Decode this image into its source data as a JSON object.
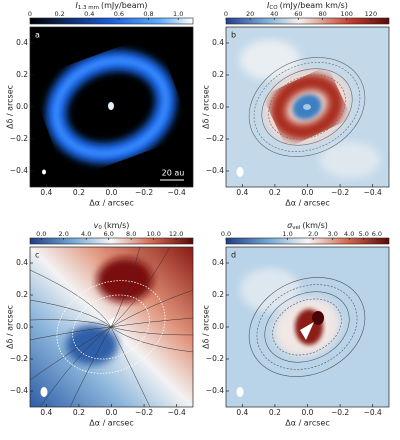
{
  "chart_data": [
    {
      "type": "image",
      "label": "a",
      "annotation": "20 au",
      "cbar": {
        "symbol": "I",
        "sub": "1.3 mm",
        "unit": "(mJy/beam)",
        "lim": [
          0,
          1.1
        ],
        "scale": "linear",
        "ticks": [
          0,
          0.2,
          0.4,
          0.6,
          0.8,
          {
            "value": 1,
            "label": "1.0"
          }
        ]
      },
      "xlabel": "Δα / arcsec",
      "ylabel": "Δδ / arcsec",
      "xlim": [
        0.5,
        -0.5
      ],
      "ylim": [
        -0.5,
        0.5
      ],
      "xticks": [
        0.4,
        0.2,
        {
          "value": 0,
          "label": "0.0"
        },
        {
          "value": -0.2,
          "label": "−0.2"
        },
        {
          "value": -0.4,
          "label": "−0.4"
        }
      ],
      "yticks": [
        0.4,
        0.2,
        {
          "value": 0,
          "label": "0.0"
        },
        {
          "value": -0.2,
          "label": "−0.2"
        },
        {
          "value": -0.4,
          "label": "−0.4"
        }
      ]
    },
    {
      "type": "image",
      "label": "b",
      "cbar": {
        "symbol": "I",
        "sub": "CO",
        "unit": "(mJy/beam km/s)",
        "lim": [
          0,
          135
        ],
        "scale": "linear",
        "ticks": [
          0,
          20,
          40,
          60,
          80,
          100,
          120
        ]
      },
      "xlabel": "Δα / arcsec",
      "ylabel": "Δδ / arcsec",
      "xlim": [
        0.5,
        -0.5
      ],
      "ylim": [
        -0.5,
        0.5
      ],
      "xticks": [
        0.4,
        0.2,
        {
          "value": 0,
          "label": "0.0"
        },
        {
          "value": -0.2,
          "label": "−0.2"
        },
        {
          "value": -0.4,
          "label": "−0.4"
        }
      ],
      "yticks": [
        0.4,
        0.2,
        {
          "value": 0,
          "label": "0.0"
        },
        {
          "value": -0.2,
          "label": "−0.2"
        },
        {
          "value": -0.4,
          "label": "−0.4"
        }
      ]
    },
    {
      "type": "image",
      "label": "c",
      "cbar": {
        "symbol": "v",
        "sub": "0",
        "unit": "(km/s)",
        "lim": [
          -1,
          13.5
        ],
        "scale": "linear",
        "ticks": [
          {
            "value": 0,
            "label": "0.0"
          },
          {
            "value": 2,
            "label": "2.0"
          },
          {
            "value": 4,
            "label": "4.0"
          },
          {
            "value": 6,
            "label": "6.0"
          },
          {
            "value": 8,
            "label": "8.0"
          },
          {
            "value": 10,
            "label": "10.0"
          },
          {
            "value": 12,
            "label": "12.0"
          }
        ]
      },
      "xlabel": "Δα / arcsec",
      "ylabel": "Δδ / arcsec",
      "xlim": [
        0.5,
        -0.5
      ],
      "ylim": [
        -0.5,
        0.5
      ],
      "xticks": [
        0.4,
        0.2,
        {
          "value": 0,
          "label": "0.0"
        },
        {
          "value": -0.2,
          "label": "−0.2"
        },
        {
          "value": -0.4,
          "label": "−0.4"
        }
      ],
      "yticks": [
        0.4,
        0.2,
        {
          "value": 0,
          "label": "0.0"
        },
        {
          "value": -0.2,
          "label": "−0.2"
        },
        {
          "value": -0.4,
          "label": "−0.4"
        }
      ]
    },
    {
      "type": "image",
      "label": "d",
      "cbar": {
        "symbol": "σ",
        "sub": "vel",
        "unit": "(km/s)",
        "lim": [
          0,
          7
        ],
        "scale": "sqrt",
        "ticks": [
          {
            "value": 0,
            "label": "0.0"
          },
          {
            "value": 1,
            "label": "1.0"
          },
          {
            "value": 2,
            "label": "2.0"
          },
          {
            "value": 3,
            "label": "3.0"
          },
          {
            "value": 4,
            "label": "4.0"
          },
          {
            "value": 5,
            "label": "5.0"
          },
          {
            "value": 6,
            "label": "6.0"
          }
        ]
      },
      "xlabel": "Δα / arcsec",
      "ylabel": "Δδ / arcsec",
      "xlim": [
        0.5,
        -0.5
      ],
      "ylim": [
        -0.5,
        0.5
      ],
      "xticks": [
        0.4,
        0.2,
        {
          "value": 0,
          "label": "0.0"
        },
        {
          "value": -0.2,
          "label": "−0.2"
        },
        {
          "value": -0.4,
          "label": "−0.4"
        }
      ],
      "yticks": [
        0.4,
        0.2,
        {
          "value": 0,
          "label": "0.0"
        },
        {
          "value": -0.2,
          "label": "−0.2"
        },
        {
          "value": -0.4,
          "label": "−0.4"
        }
      ]
    }
  ]
}
